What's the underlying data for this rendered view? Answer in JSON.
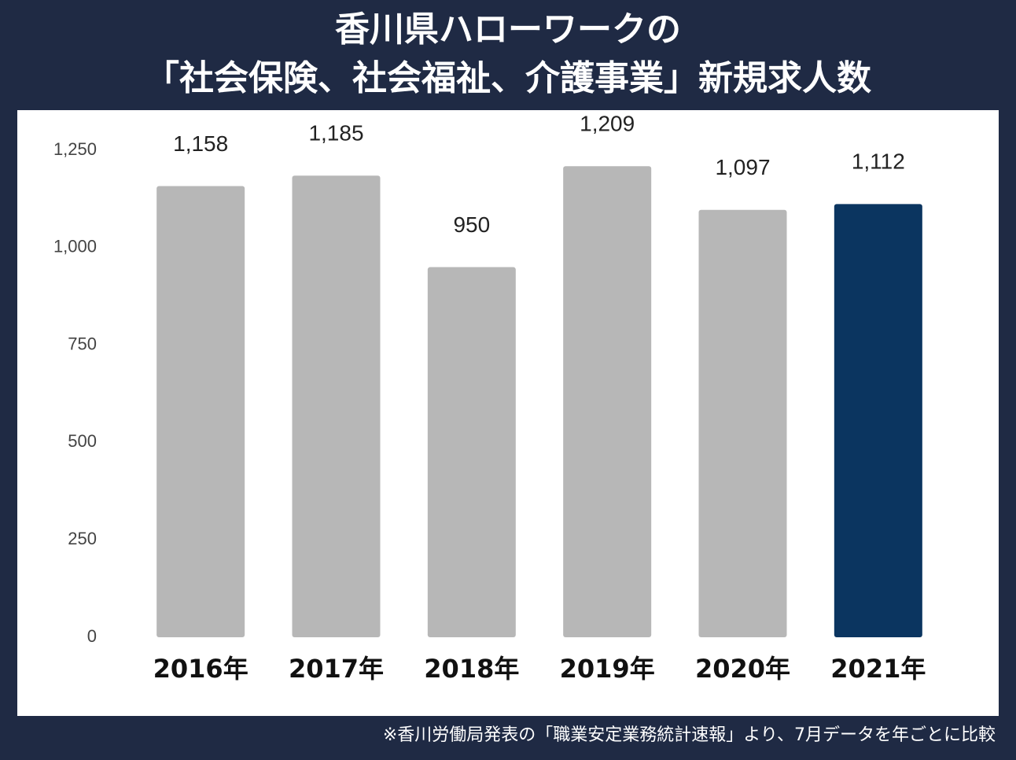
{
  "chart_data": {
    "type": "bar",
    "title": [
      "香川県ハローワークの",
      "「社会保険、社会福祉、介護事業」新規求人数"
    ],
    "categories": [
      "2016年",
      "2017年",
      "2018年",
      "2019年",
      "2020年",
      "2021年"
    ],
    "values": [
      1158,
      1185,
      950,
      1209,
      1097,
      1112
    ],
    "value_labels": [
      "1,158",
      "1,185",
      "950",
      "1,209",
      "1,097",
      "1,112"
    ],
    "colors": [
      "#b7b7b7",
      "#b7b7b7",
      "#b7b7b7",
      "#b7b7b7",
      "#b7b7b7",
      "#0b3560"
    ],
    "ylim": [
      0,
      1250
    ],
    "yticks": [
      0,
      250,
      500,
      750,
      {
        "value": 1000,
        "label": "1,000"
      },
      {
        "value": 1250,
        "label": "1,250"
      }
    ],
    "grid": false,
    "note": "※香川労働局発表の「職業安定業務統計速報」より、7月データを年ごとに比較"
  }
}
